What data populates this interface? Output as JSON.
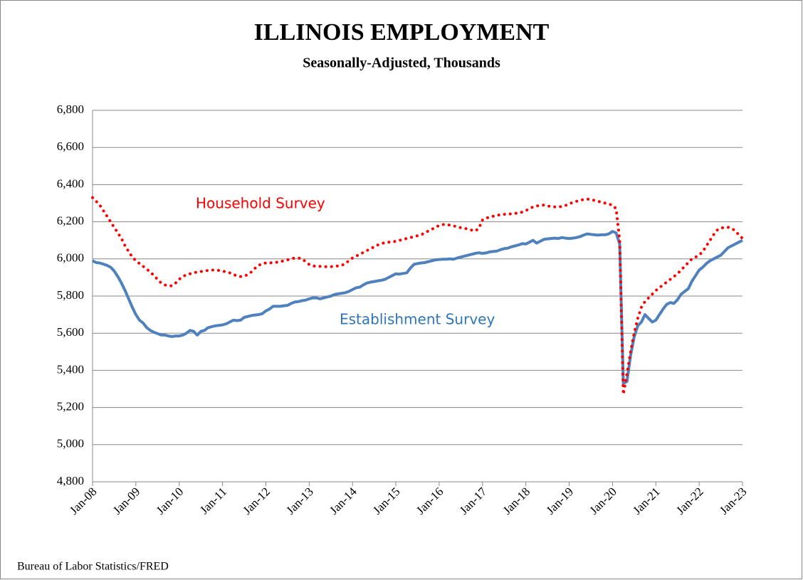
{
  "chart_data": {
    "type": "line",
    "title": "ILLINOIS EMPLOYMENT",
    "subtitle": "Seasonally-Adjusted, Thousands",
    "source": "Bureau of Labor Statistics/FRED",
    "annotations": [
      "Household Survey",
      "Establishment Survey"
    ],
    "categories": [
      "Jan-08",
      null,
      null,
      null,
      null,
      null,
      null,
      null,
      null,
      null,
      null,
      null,
      "Jan-09",
      null,
      null,
      null,
      null,
      null,
      null,
      null,
      null,
      null,
      null,
      null,
      "Jan-10",
      null,
      null,
      null,
      null,
      null,
      null,
      null,
      null,
      null,
      null,
      null,
      "Jan-11",
      null,
      null,
      null,
      null,
      null,
      null,
      null,
      null,
      null,
      null,
      null,
      "Jan-12",
      null,
      null,
      null,
      null,
      null,
      null,
      null,
      null,
      null,
      null,
      null,
      "Jan-13",
      null,
      null,
      null,
      null,
      null,
      null,
      null,
      null,
      null,
      null,
      null,
      "Jan-14",
      null,
      null,
      null,
      null,
      null,
      null,
      null,
      null,
      null,
      null,
      null,
      "Jan-15",
      null,
      null,
      null,
      null,
      null,
      null,
      null,
      null,
      null,
      null,
      null,
      "Jan-16",
      null,
      null,
      null,
      null,
      null,
      null,
      null,
      null,
      null,
      null,
      null,
      "Jan-17",
      null,
      null,
      null,
      null,
      null,
      null,
      null,
      null,
      null,
      null,
      null,
      "Jan-18",
      null,
      null,
      null,
      null,
      null,
      null,
      null,
      null,
      null,
      null,
      null,
      "Jan-19",
      null,
      null,
      null,
      null,
      null,
      null,
      null,
      null,
      null,
      null,
      null,
      "Jan-20",
      null,
      null,
      null,
      null,
      null,
      null,
      null,
      null,
      null,
      null,
      null,
      "Jan-21",
      null,
      null,
      null,
      null,
      null,
      null,
      null,
      null,
      null,
      null,
      null,
      "Jan-22",
      null,
      null,
      null,
      null,
      null,
      null,
      null,
      null,
      null,
      null,
      null,
      "Jan-23"
    ],
    "series": [
      {
        "name": "Household Survey",
        "color": "#ff0000",
        "dotted": true,
        "values": [
          6330,
          6310,
          6290,
          6260,
          6230,
          6200,
          6170,
          6140,
          6110,
          6070,
          6040,
          6010,
          5990,
          5975,
          5960,
          5945,
          5930,
          5910,
          5890,
          5870,
          5860,
          5855,
          5855,
          5870,
          5890,
          5905,
          5915,
          5920,
          5925,
          5930,
          5932,
          5935,
          5938,
          5940,
          5940,
          5938,
          5935,
          5930,
          5925,
          5915,
          5910,
          5905,
          5908,
          5915,
          5930,
          5950,
          5965,
          5975,
          5978,
          5978,
          5980,
          5982,
          5985,
          5990,
          5995,
          6000,
          6005,
          6005,
          6000,
          5985,
          5970,
          5962,
          5960,
          5960,
          5958,
          5958,
          5958,
          5960,
          5962,
          5965,
          5975,
          5990,
          6005,
          6015,
          6025,
          6035,
          6045,
          6055,
          6065,
          6075,
          6082,
          6088,
          6090,
          6092,
          6095,
          6100,
          6105,
          6110,
          6115,
          6120,
          6125,
          6130,
          6140,
          6150,
          6160,
          6170,
          6180,
          6185,
          6185,
          6182,
          6178,
          6172,
          6168,
          6165,
          6160,
          6155,
          6150,
          6165,
          6210,
          6220,
          6225,
          6230,
          6235,
          6238,
          6240,
          6242,
          6242,
          6245,
          6248,
          6252,
          6260,
          6270,
          6280,
          6285,
          6288,
          6290,
          6285,
          6282,
          6280,
          6280,
          6282,
          6288,
          6295,
          6305,
          6310,
          6315,
          6320,
          6322,
          6320,
          6315,
          6310,
          6305,
          6300,
          6295,
          6290,
          6270,
          6100,
          5270,
          5380,
          5500,
          5600,
          5680,
          5740,
          5770,
          5790,
          5810,
          5830,
          5845,
          5860,
          5875,
          5890,
          5905,
          5920,
          5940,
          5960,
          5980,
          6000,
          6010,
          6020,
          6040,
          6070,
          6100,
          6130,
          6155,
          6165,
          6170,
          6170,
          6165,
          6150,
          6130,
          6110
        ]
      },
      {
        "name": "Establishment Survey",
        "color": "#4f81bd",
        "dotted": false,
        "values": [
          5990,
          5980,
          5978,
          5972,
          5965,
          5955,
          5935,
          5905,
          5870,
          5830,
          5785,
          5740,
          5700,
          5670,
          5655,
          5630,
          5615,
          5605,
          5598,
          5590,
          5590,
          5585,
          5582,
          5585,
          5585,
          5590,
          5600,
          5615,
          5610,
          5590,
          5610,
          5615,
          5630,
          5635,
          5640,
          5642,
          5645,
          5650,
          5660,
          5670,
          5668,
          5670,
          5685,
          5690,
          5695,
          5698,
          5700,
          5705,
          5720,
          5730,
          5745,
          5745,
          5745,
          5748,
          5750,
          5760,
          5768,
          5770,
          5775,
          5778,
          5785,
          5790,
          5790,
          5785,
          5790,
          5795,
          5800,
          5808,
          5812,
          5815,
          5818,
          5825,
          5835,
          5845,
          5848,
          5860,
          5870,
          5875,
          5878,
          5882,
          5885,
          5890,
          5900,
          5910,
          5920,
          5918,
          5922,
          5925,
          5950,
          5970,
          5975,
          5978,
          5980,
          5985,
          5990,
          5995,
          5997,
          5998,
          5998,
          6000,
          5998,
          6005,
          6010,
          6015,
          6020,
          6025,
          6030,
          6033,
          6030,
          6032,
          6038,
          6040,
          6042,
          6050,
          6055,
          6058,
          6065,
          6070,
          6075,
          6082,
          6080,
          6090,
          6100,
          6085,
          6095,
          6105,
          6108,
          6110,
          6112,
          6110,
          6115,
          6112,
          6110,
          6112,
          6115,
          6120,
          6128,
          6135,
          6132,
          6130,
          6128,
          6130,
          6130,
          6135,
          6148,
          6140,
          6080,
          5330,
          5340,
          5480,
          5580,
          5640,
          5660,
          5700,
          5680,
          5660,
          5670,
          5700,
          5730,
          5755,
          5765,
          5760,
          5780,
          5810,
          5825,
          5840,
          5880,
          5910,
          5940,
          5955,
          5975,
          5990,
          6000,
          6010,
          6020,
          6040,
          6060,
          6070,
          6080,
          6090,
          6100
        ]
      }
    ],
    "ylim": [
      4800,
      6800
    ],
    "yticks": [
      {
        "value": 4800,
        "label": "4,800"
      },
      {
        "value": 5000,
        "label": "5,000"
      },
      {
        "value": 5200,
        "label": "5,200"
      },
      {
        "value": 5400,
        "label": "5,400"
      },
      {
        "value": 5600,
        "label": "5,600"
      },
      {
        "value": 5800,
        "label": "5,800"
      },
      {
        "value": 6000,
        "label": "6,000"
      },
      {
        "value": 6200,
        "label": "6,200"
      },
      {
        "value": 6400,
        "label": "6,400"
      },
      {
        "value": 6600,
        "label": "6,600"
      },
      {
        "value": 6800,
        "label": "6,800"
      }
    ],
    "grid": true
  }
}
